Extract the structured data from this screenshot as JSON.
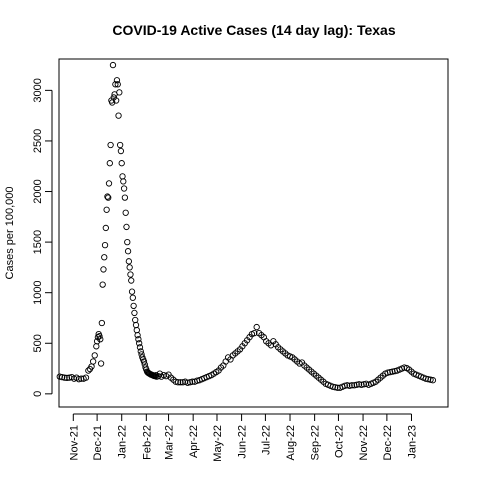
{
  "chart_data": {
    "type": "scatter",
    "title": "COVID-19 Active Cases (14 day lag): Texas",
    "xlabel": "",
    "ylabel": "Cases per 100,000",
    "ylim": [
      -130,
      3310
    ],
    "xlim": [
      "2021-10-14",
      "2023-02-16"
    ],
    "yticks": [
      0,
      500,
      1000,
      1500,
      2000,
      2500,
      3000
    ],
    "xticks": [
      {
        "date": "2021-11-01",
        "label": "Nov-21"
      },
      {
        "date": "2021-12-01",
        "label": "Dec-21"
      },
      {
        "date": "2022-01-01",
        "label": "Jan-22"
      },
      {
        "date": "2022-02-01",
        "label": "Feb-22"
      },
      {
        "date": "2022-03-01",
        "label": "Mar-22"
      },
      {
        "date": "2022-04-01",
        "label": "Apr-22"
      },
      {
        "date": "2022-05-01",
        "label": "May-22"
      },
      {
        "date": "2022-06-01",
        "label": "Jun-22"
      },
      {
        "date": "2022-07-01",
        "label": "Jul-22"
      },
      {
        "date": "2022-08-01",
        "label": "Aug-22"
      },
      {
        "date": "2022-09-01",
        "label": "Sep-22"
      },
      {
        "date": "2022-10-01",
        "label": "Oct-22"
      },
      {
        "date": "2022-11-01",
        "label": "Nov-22"
      },
      {
        "date": "2022-12-01",
        "label": "Dec-22"
      },
      {
        "date": "2023-01-01",
        "label": "Jan-23"
      }
    ],
    "grid": false,
    "marker": "open-circle",
    "point_color": "#000000",
    "series": [
      {
        "x": [
          "2021-10-15",
          "2021-10-18",
          "2021-10-21",
          "2021-10-24",
          "2021-10-27",
          "2021-10-30",
          "2021-11-02",
          "2021-11-05",
          "2021-11-08",
          "2021-11-11",
          "2021-11-14",
          "2021-11-17",
          "2021-11-20",
          "2021-11-22",
          "2021-11-24",
          "2021-11-26",
          "2021-11-28",
          "2021-11-30",
          "2021-12-01",
          "2021-12-02",
          "2021-12-03",
          "2021-12-04",
          "2021-12-05",
          "2021-12-06",
          "2021-12-07",
          "2021-12-08",
          "2021-12-09",
          "2021-12-10",
          "2021-12-11",
          "2021-12-12",
          "2021-12-13",
          "2021-12-14",
          "2021-12-15",
          "2021-12-16",
          "2021-12-17",
          "2021-12-18",
          "2021-12-19",
          "2021-12-20",
          "2021-12-21",
          "2021-12-22",
          "2021-12-23",
          "2021-12-24",
          "2021-12-25",
          "2021-12-26",
          "2021-12-27",
          "2021-12-28",
          "2021-12-29",
          "2021-12-30",
          "2021-12-31",
          "2022-01-01",
          "2022-01-02",
          "2022-01-03",
          "2022-01-04",
          "2022-01-05",
          "2022-01-06",
          "2022-01-07",
          "2022-01-08",
          "2022-01-09",
          "2022-01-10",
          "2022-01-11",
          "2022-01-12",
          "2022-01-13",
          "2022-01-14",
          "2022-01-15",
          "2022-01-16",
          "2022-01-17",
          "2022-01-18",
          "2022-01-19",
          "2022-01-20",
          "2022-01-21",
          "2022-01-22",
          "2022-01-23",
          "2022-01-24",
          "2022-01-25",
          "2022-01-26",
          "2022-01-27",
          "2022-01-28",
          "2022-01-29",
          "2022-01-30",
          "2022-01-31",
          "2022-02-01",
          "2022-02-02",
          "2022-02-03",
          "2022-02-04",
          "2022-02-05",
          "2022-02-06",
          "2022-02-07",
          "2022-02-08",
          "2022-02-09",
          "2022-02-10",
          "2022-02-11",
          "2022-02-12",
          "2022-02-13",
          "2022-02-14",
          "2022-02-16",
          "2022-02-18",
          "2022-02-20",
          "2022-02-23",
          "2022-02-26",
          "2022-03-01",
          "2022-03-04",
          "2022-03-07",
          "2022-03-10",
          "2022-03-13",
          "2022-03-16",
          "2022-03-19",
          "2022-03-22",
          "2022-03-25",
          "2022-03-28",
          "2022-03-31",
          "2022-04-03",
          "2022-04-06",
          "2022-04-09",
          "2022-04-12",
          "2022-04-15",
          "2022-04-18",
          "2022-04-21",
          "2022-04-24",
          "2022-04-27",
          "2022-04-30",
          "2022-05-03",
          "2022-05-06",
          "2022-05-09",
          "2022-05-12",
          "2022-05-15",
          "2022-05-18",
          "2022-05-21",
          "2022-05-24",
          "2022-05-27",
          "2022-05-30",
          "2022-06-02",
          "2022-06-05",
          "2022-06-08",
          "2022-06-11",
          "2022-06-14",
          "2022-06-17",
          "2022-06-20",
          "2022-06-23",
          "2022-06-26",
          "2022-06-29",
          "2022-07-02",
          "2022-07-05",
          "2022-07-08",
          "2022-07-11",
          "2022-07-14",
          "2022-07-17",
          "2022-07-20",
          "2022-07-23",
          "2022-07-26",
          "2022-07-29",
          "2022-08-01",
          "2022-08-04",
          "2022-08-07",
          "2022-08-10",
          "2022-08-13",
          "2022-08-16",
          "2022-08-19",
          "2022-08-22",
          "2022-08-25",
          "2022-08-28",
          "2022-08-31",
          "2022-09-03",
          "2022-09-06",
          "2022-09-09",
          "2022-09-12",
          "2022-09-15",
          "2022-09-18",
          "2022-09-21",
          "2022-09-24",
          "2022-09-27",
          "2022-09-30",
          "2022-10-03",
          "2022-10-06",
          "2022-10-09",
          "2022-10-12",
          "2022-10-15",
          "2022-10-18",
          "2022-10-21",
          "2022-10-24",
          "2022-10-27",
          "2022-10-30",
          "2022-11-02",
          "2022-11-05",
          "2022-11-08",
          "2022-11-11",
          "2022-11-14",
          "2022-11-17",
          "2022-11-20",
          "2022-11-23",
          "2022-11-26",
          "2022-11-29",
          "2022-12-02",
          "2022-12-05",
          "2022-12-08",
          "2022-12-11",
          "2022-12-14",
          "2022-12-17",
          "2022-12-20",
          "2022-12-23",
          "2022-12-26",
          "2022-12-29",
          "2023-01-01",
          "2023-01-04",
          "2023-01-07",
          "2023-01-10",
          "2023-01-13",
          "2023-01-16",
          "2023-01-19",
          "2023-01-22",
          "2023-01-25",
          "2023-01-28"
        ],
        "y": [
          170,
          165,
          160,
          158,
          160,
          165,
          150,
          160,
          145,
          150,
          150,
          160,
          230,
          245,
          270,
          320,
          380,
          470,
          520,
          560,
          590,
          570,
          540,
          300,
          700,
          1080,
          1230,
          1350,
          1470,
          1640,
          1820,
          1950,
          1940,
          2080,
          2280,
          2460,
          2900,
          2880,
          3250,
          2930,
          2960,
          3060,
          2900,
          3100,
          3060,
          2750,
          2980,
          2460,
          2400,
          2280,
          2150,
          2100,
          2030,
          1940,
          1790,
          1650,
          1500,
          1410,
          1310,
          1250,
          1180,
          1120,
          1010,
          950,
          870,
          800,
          730,
          680,
          630,
          580,
          540,
          500,
          460,
          420,
          390,
          360,
          340,
          320,
          290,
          260,
          240,
          220,
          210,
          205,
          200,
          195,
          190,
          188,
          185,
          180,
          178,
          175,
          185,
          170,
          175,
          200,
          170,
          185,
          175,
          190,
          160,
          140,
          120,
          115,
          115,
          115,
          120,
          110,
          115,
          120,
          120,
          130,
          135,
          145,
          155,
          165,
          175,
          185,
          200,
          215,
          230,
          260,
          280,
          320,
          360,
          340,
          380,
          400,
          420,
          440,
          470,
          500,
          530,
          560,
          590,
          600,
          660,
          600,
          580,
          560,
          520,
          500,
          480,
          520,
          490,
          460,
          440,
          420,
          400,
          380,
          370,
          360,
          340,
          320,
          300,
          310,
          280,
          260,
          240,
          220,
          200,
          180,
          160,
          140,
          120,
          100,
          90,
          80,
          70,
          65,
          60,
          60,
          70,
          80,
          85,
          80,
          85,
          85,
          90,
          95,
          90,
          95,
          100,
          90,
          100,
          110,
          120,
          140,
          160,
          180,
          200,
          210,
          215,
          220,
          225,
          230,
          240,
          250,
          260,
          255,
          240,
          220,
          200,
          190,
          180,
          170,
          160,
          150,
          145,
          140,
          135
        ]
      }
    ]
  }
}
